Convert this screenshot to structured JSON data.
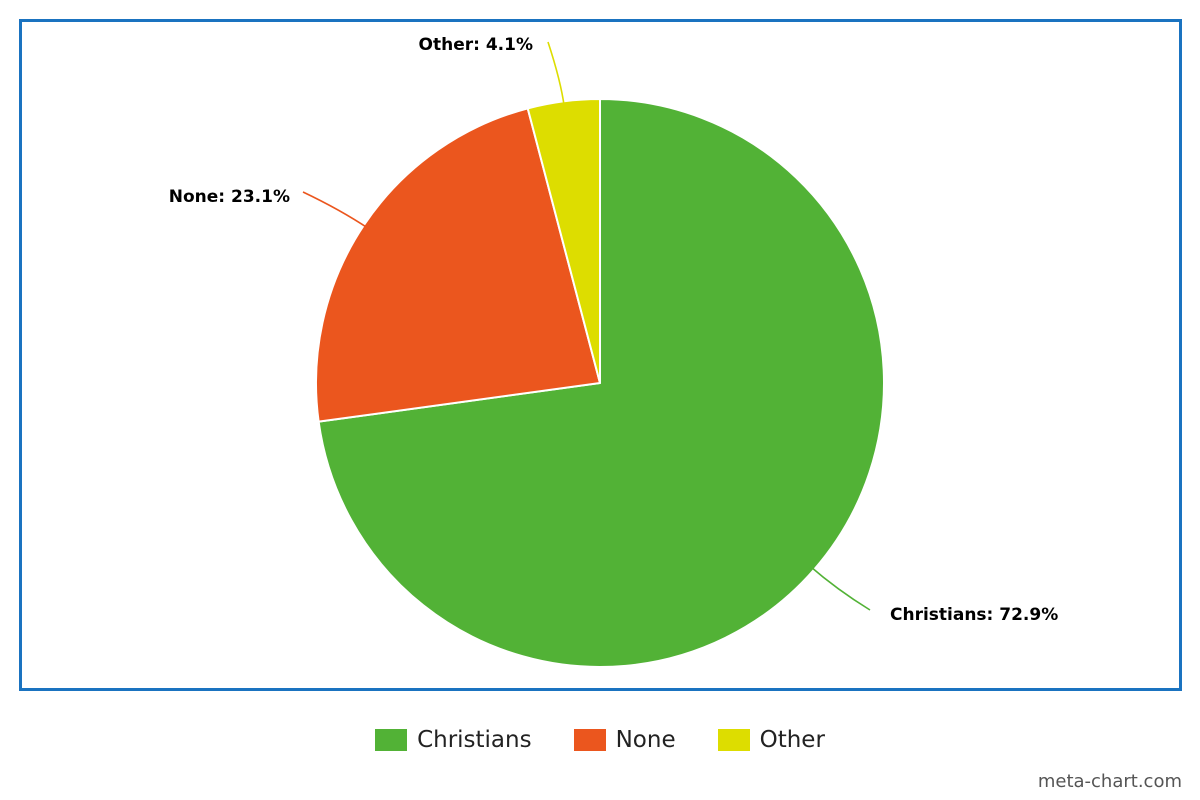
{
  "chart_data": {
    "type": "pie",
    "title": "",
    "slices": [
      {
        "name": "Christians",
        "value": 72.9,
        "label": "Christians: 72.9%",
        "color": "#52b236"
      },
      {
        "name": "None",
        "value": 23.1,
        "label": "None: 23.1%",
        "color": "#eb561e"
      },
      {
        "name": "Other",
        "value": 4.1,
        "label": "Other: 4.1%",
        "color": "#dddd00"
      }
    ],
    "legend": {
      "placement": "bottom",
      "items": [
        "Christians",
        "None",
        "Other"
      ]
    }
  },
  "colors": {
    "frame_border": "#1a73c0"
  },
  "watermark": "meta-chart.com"
}
